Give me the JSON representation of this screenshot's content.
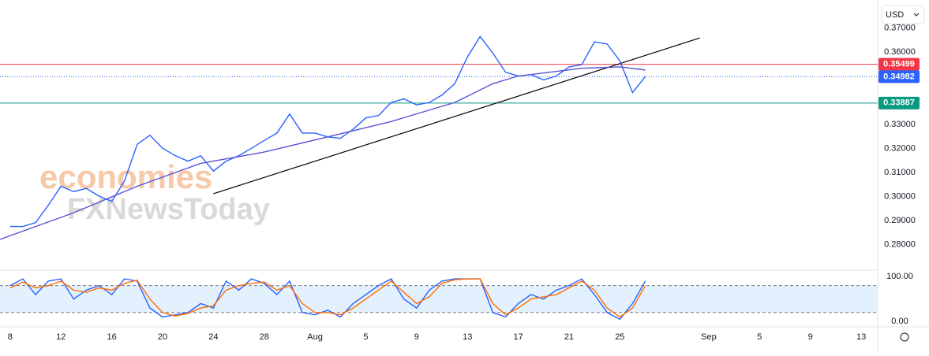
{
  "currency": "USD",
  "watermark": [
    "economies",
    "FXNewsToday"
  ],
  "chart_data": [
    {
      "type": "line",
      "x": [
        0,
        1,
        2,
        3,
        4,
        5,
        6,
        7,
        8,
        9,
        10,
        11,
        12,
        13,
        14,
        15,
        16,
        17,
        18,
        19,
        20,
        21,
        22,
        23,
        24,
        25,
        26,
        27,
        28,
        29,
        30,
        31,
        32,
        33,
        34,
        35,
        36,
        37,
        38,
        39,
        40,
        41,
        42,
        43,
        44,
        45,
        46,
        47,
        48,
        49,
        50
      ],
      "series": [
        {
          "color": "#2962ff",
          "x": [
            0,
            1,
            2,
            3,
            4,
            5,
            6,
            7,
            8,
            9,
            10,
            11,
            12,
            13,
            14,
            15,
            16,
            17,
            18,
            19,
            20,
            21,
            22,
            23,
            24,
            25,
            26,
            27,
            28,
            29,
            30,
            31,
            32,
            33,
            34,
            35,
            36,
            37,
            38,
            39,
            40,
            41,
            42,
            43,
            44,
            45,
            46,
            47,
            48,
            49,
            50
          ],
          "values": [
            0.2876,
            0.2876,
            0.2892,
            0.2964,
            0.3043,
            0.3021,
            0.3034,
            0.3002,
            0.298,
            0.3065,
            0.3217,
            0.3255,
            0.3201,
            0.317,
            0.3147,
            0.317,
            0.3106,
            0.3147,
            0.317,
            0.3201,
            0.3233,
            0.3264,
            0.3343,
            0.3264,
            0.3264,
            0.3248,
            0.3242,
            0.328,
            0.3327,
            0.3337,
            0.3391,
            0.3406,
            0.3381,
            0.3391,
            0.3422,
            0.3469,
            0.358,
            0.3665,
            0.3596,
            0.3517,
            0.3501,
            0.3507,
            0.3485,
            0.3501,
            0.3539,
            0.3548,
            0.3643,
            0.3634,
            0.3564,
            0.3432,
            0.34982
          ]
        },
        {
          "color": "#5b52d6",
          "x": [
            -0.8,
            5,
            10,
            15,
            20,
            25,
            30,
            35,
            38,
            40,
            45,
            48,
            50
          ],
          "values": [
            0.2822,
            0.2933,
            0.3043,
            0.3138,
            0.3185,
            0.3248,
            0.3312,
            0.3391,
            0.3469,
            0.3501,
            0.3533,
            0.3539,
            0.3526
          ]
        }
      ],
      "trendline": {
        "x": [
          16,
          54.3
        ],
        "values": [
          0.3012,
          0.3659
        ],
        "color": "#000000"
      },
      "price_lines": [
        {
          "value": 0.35499,
          "color": "#f23645",
          "style": "solid"
        },
        {
          "value": 0.34982,
          "color": "#2962ff",
          "style": "dotted"
        },
        {
          "value": 0.33887,
          "color": "#089981",
          "style": "solid"
        }
      ],
      "xlim": [
        -0.8,
        68.3
      ],
      "ylim": [
        0.27043,
        0.38168
      ],
      "yticks": [
        {
          "value": 0.28,
          "label": "0.28000"
        },
        {
          "value": 0.29,
          "label": "0.29000"
        },
        {
          "value": 0.3,
          "label": "0.30000"
        },
        {
          "value": 0.31,
          "label": "0.31000"
        },
        {
          "value": 0.32,
          "label": "0.32000"
        },
        {
          "value": 0.33,
          "label": "0.33000"
        },
        {
          "value": 0.36,
          "label": "0.36000"
        },
        {
          "value": 0.37,
          "label": "0.37000"
        }
      ]
    },
    {
      "type": "line",
      "x": [
        0,
        1,
        2,
        3,
        4,
        5,
        6,
        7,
        8,
        9,
        10,
        11,
        12,
        13,
        14,
        15,
        16,
        17,
        18,
        19,
        20,
        21,
        22,
        23,
        24,
        25,
        26,
        27,
        28,
        29,
        30,
        31,
        32,
        33,
        34,
        35,
        36,
        37,
        38,
        39,
        40,
        41,
        42,
        43,
        44,
        45,
        46,
        47,
        48,
        49,
        50
      ],
      "series": [
        {
          "color": "#2962ff",
          "values": [
            80,
            95,
            60,
            90,
            95,
            50,
            70,
            80,
            60,
            95,
            90,
            30,
            10,
            15,
            20,
            40,
            30,
            90,
            70,
            95,
            85,
            60,
            90,
            20,
            15,
            25,
            10,
            40,
            60,
            80,
            95,
            50,
            30,
            70,
            90,
            95,
            95,
            95,
            20,
            10,
            40,
            60,
            50,
            70,
            80,
            95,
            60,
            20,
            5,
            40,
            90
          ]
        },
        {
          "color": "#ff6d00",
          "values": [
            75,
            88,
            75,
            80,
            90,
            70,
            65,
            75,
            70,
            85,
            92,
            50,
            20,
            12,
            18,
            30,
            35,
            70,
            80,
            85,
            88,
            70,
            80,
            40,
            20,
            20,
            15,
            30,
            50,
            70,
            90,
            65,
            40,
            55,
            85,
            93,
            95,
            95,
            40,
            15,
            30,
            50,
            55,
            60,
            75,
            90,
            70,
            30,
            10,
            30,
            80
          ]
        }
      ],
      "band": [
        20,
        80
      ],
      "xlim": [
        -0.8,
        68.3
      ],
      "ylim": [
        -12,
        111
      ],
      "yticks": [
        {
          "value": 0,
          "label": "0.00"
        },
        {
          "value": 100,
          "label": "100.00"
        }
      ],
      "xticks": [
        {
          "value": 0,
          "label": "8"
        },
        {
          "value": 4,
          "label": "12"
        },
        {
          "value": 8,
          "label": "16"
        },
        {
          "value": 12,
          "label": "20"
        },
        {
          "value": 16,
          "label": "24"
        },
        {
          "value": 20,
          "label": "28"
        },
        {
          "value": 24,
          "label": "Aug"
        },
        {
          "value": 28,
          "label": "5"
        },
        {
          "value": 32,
          "label": "9"
        },
        {
          "value": 36,
          "label": "13"
        },
        {
          "value": 40,
          "label": "17"
        },
        {
          "value": 44,
          "label": "21"
        },
        {
          "value": 48,
          "label": "25"
        },
        {
          "value": 55,
          "label": "Sep"
        },
        {
          "value": 59,
          "label": "5"
        },
        {
          "value": 63,
          "label": "9"
        },
        {
          "value": 67,
          "label": "13"
        }
      ]
    }
  ]
}
